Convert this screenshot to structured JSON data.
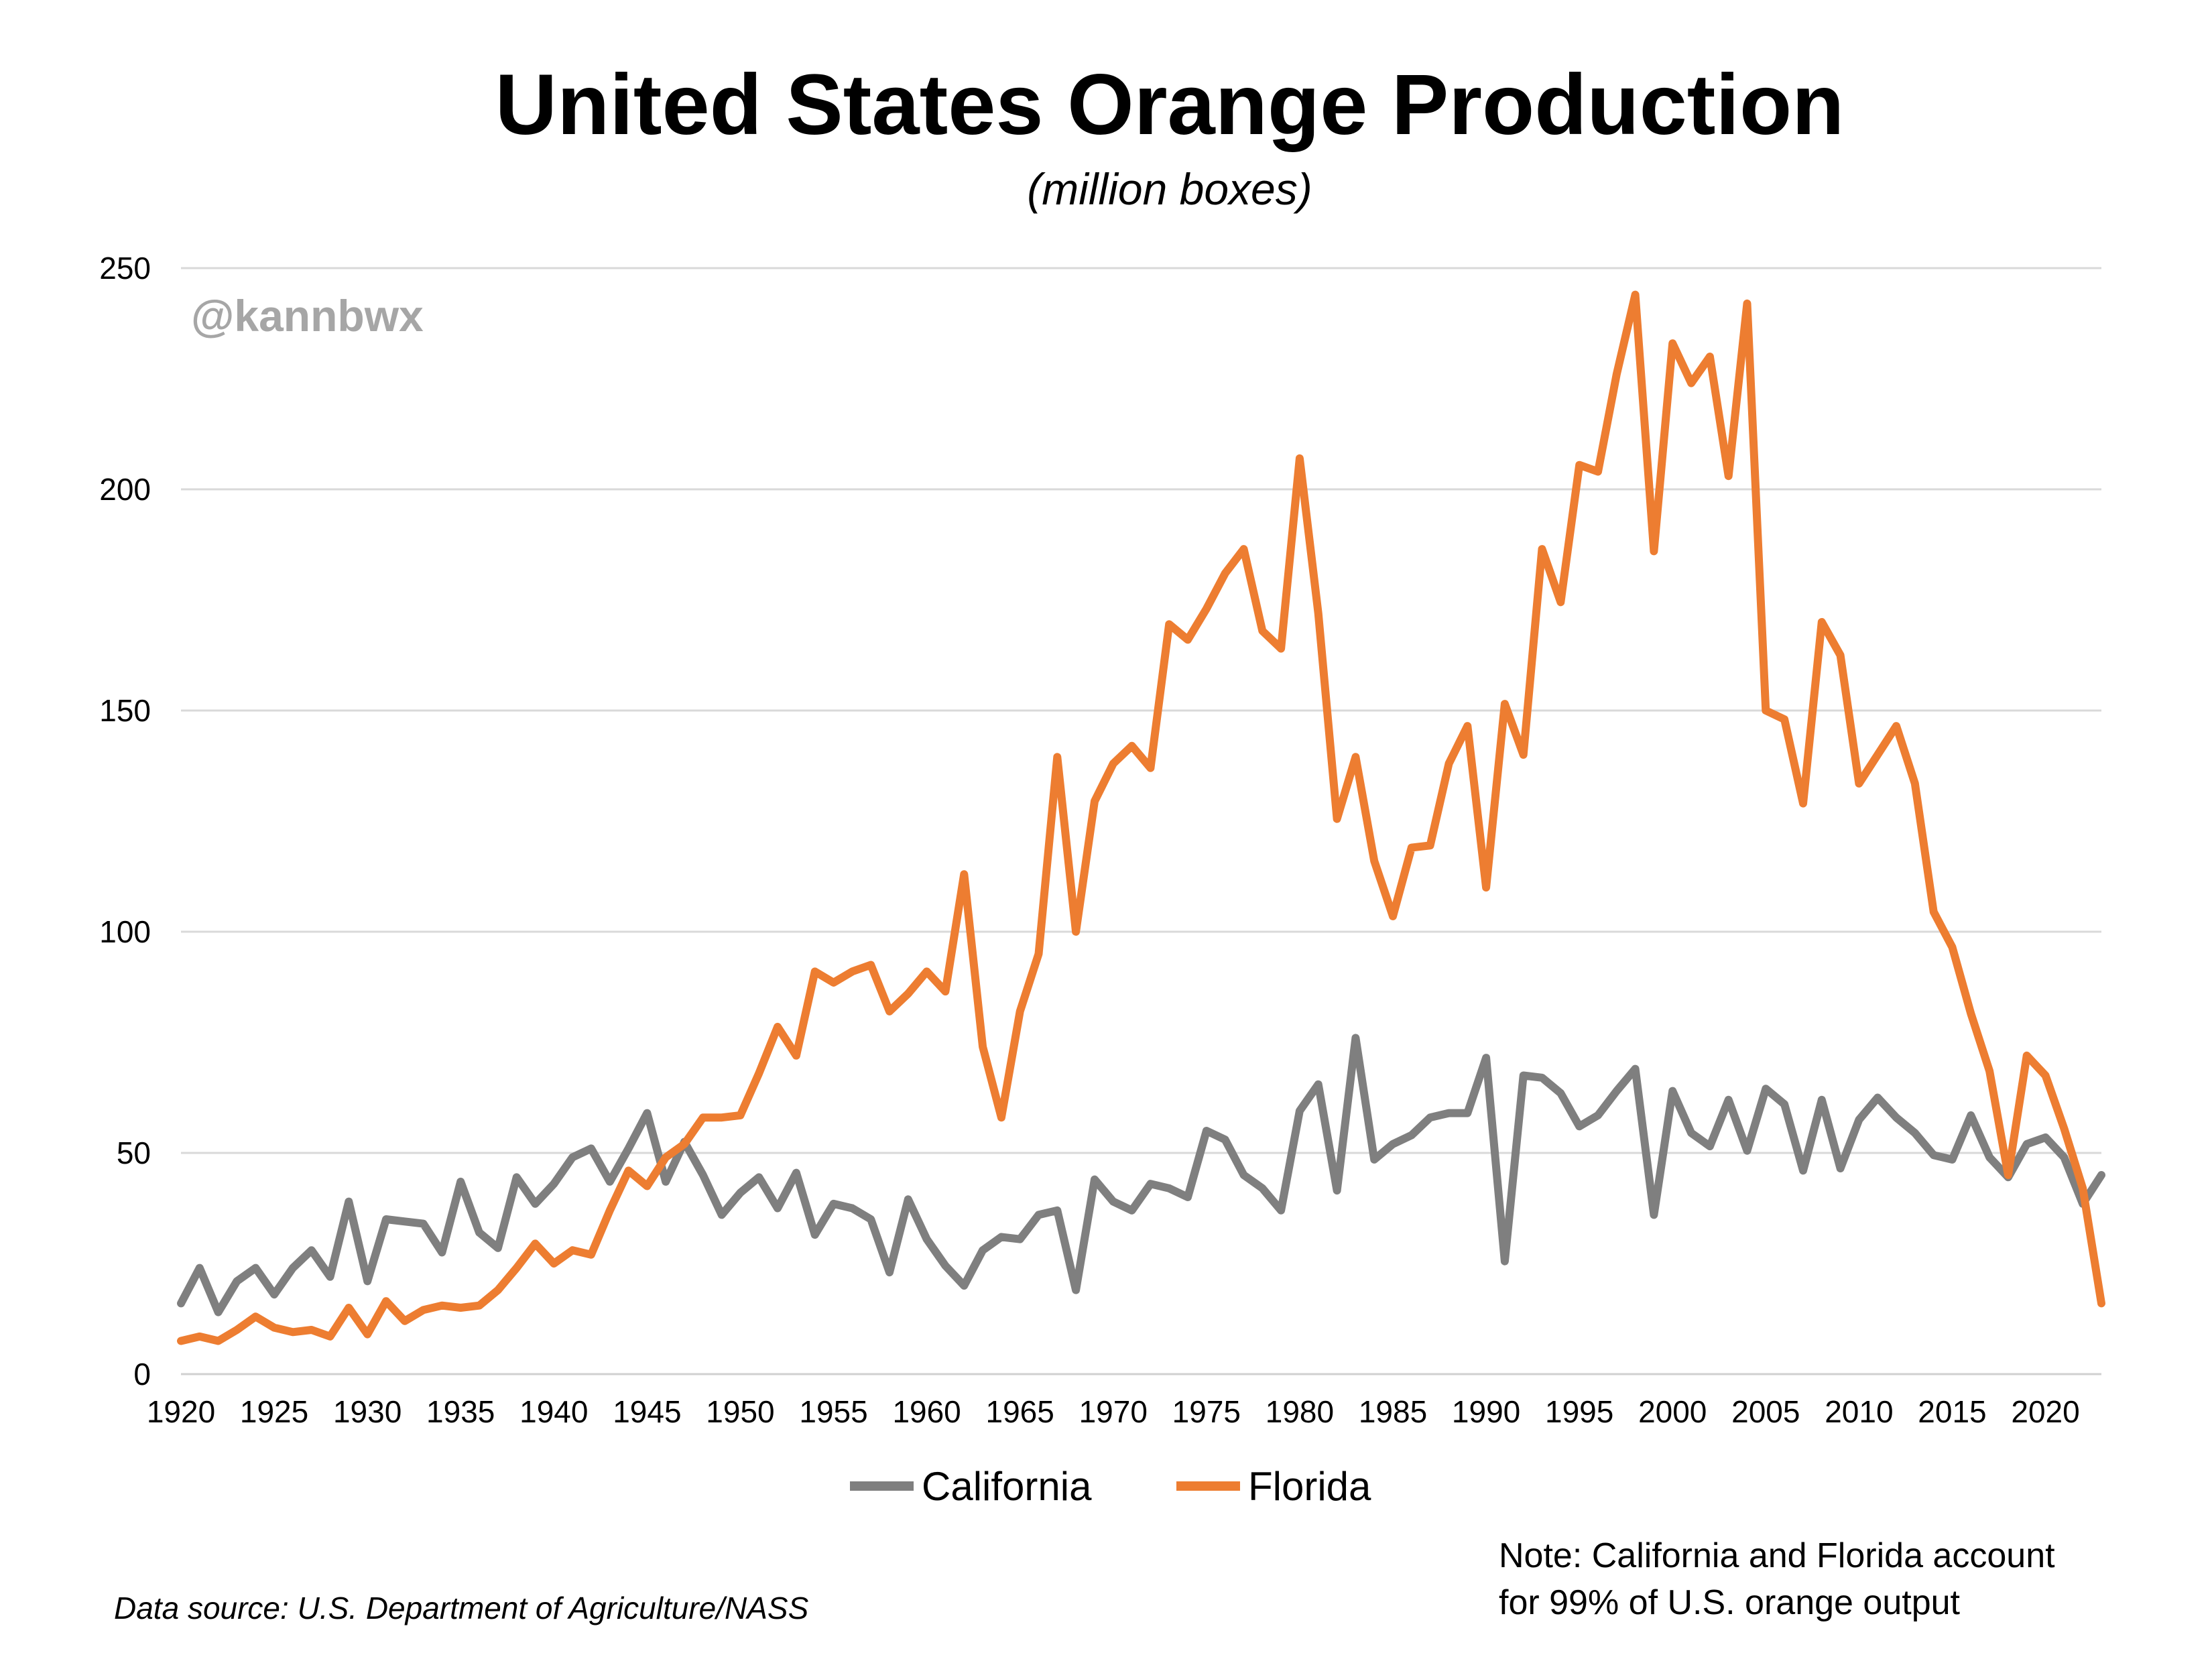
{
  "chart_data": {
    "type": "line",
    "title": "United States Orange Production",
    "subtitle": "(million boxes)",
    "watermark": "@kannbwx",
    "ylim": [
      0,
      250
    ],
    "y_ticks": [
      "0",
      "50",
      "100",
      "150",
      "200",
      "250"
    ],
    "y_tick_values": [
      0,
      50,
      100,
      150,
      200,
      250
    ],
    "xlim": [
      1920,
      2023
    ],
    "x_ticks": [
      "1920",
      "1925",
      "1930",
      "1935",
      "1940",
      "1945",
      "1950",
      "1955",
      "1960",
      "1965",
      "1970",
      "1975",
      "1980",
      "1985",
      "1990",
      "1995",
      "2000",
      "2005",
      "2010",
      "2015",
      "2020"
    ],
    "x_tick_values": [
      1920,
      1925,
      1930,
      1935,
      1940,
      1945,
      1950,
      1955,
      1960,
      1965,
      1970,
      1975,
      1980,
      1985,
      1990,
      1995,
      2000,
      2005,
      2010,
      2015,
      2020
    ],
    "grid": "horizontal",
    "legend_position": "bottom",
    "x": [
      1920,
      1921,
      1922,
      1923,
      1924,
      1925,
      1926,
      1927,
      1928,
      1929,
      1930,
      1931,
      1932,
      1933,
      1934,
      1935,
      1936,
      1937,
      1938,
      1939,
      1940,
      1941,
      1942,
      1943,
      1944,
      1945,
      1946,
      1947,
      1948,
      1949,
      1950,
      1951,
      1952,
      1953,
      1954,
      1955,
      1956,
      1957,
      1958,
      1959,
      1960,
      1961,
      1962,
      1963,
      1964,
      1965,
      1966,
      1967,
      1968,
      1969,
      1970,
      1971,
      1972,
      1973,
      1974,
      1975,
      1976,
      1977,
      1978,
      1979,
      1980,
      1981,
      1982,
      1983,
      1984,
      1985,
      1986,
      1987,
      1988,
      1989,
      1990,
      1991,
      1992,
      1993,
      1994,
      1995,
      1996,
      1997,
      1998,
      1999,
      2000,
      2001,
      2002,
      2003,
      2004,
      2005,
      2006,
      2007,
      2008,
      2009,
      2010,
      2011,
      2012,
      2013,
      2014,
      2015,
      2016,
      2017,
      2018,
      2019,
      2020,
      2021,
      2022,
      2023
    ],
    "series": [
      {
        "name": "California",
        "color": "#7f7f7f",
        "values": [
          16,
          24,
          14,
          21,
          24,
          18,
          24,
          28,
          22,
          39,
          21,
          35,
          34.5,
          34,
          27.5,
          43.5,
          32,
          28.5,
          44.5,
          38.5,
          43,
          49,
          51,
          43.5,
          51,
          59,
          43.5,
          52.5,
          45,
          36,
          41,
          44.5,
          37.5,
          45.5,
          31.5,
          38.5,
          37.5,
          35,
          23,
          39.5,
          30.5,
          24.5,
          20,
          28,
          31,
          30.5,
          36,
          37,
          19,
          44,
          39,
          37,
          43,
          42,
          40,
          55,
          53,
          45,
          42,
          37,
          59.5,
          65.5,
          41.5,
          76,
          48.5,
          52,
          54,
          58,
          59,
          59,
          71.5,
          25.5,
          67.5,
          67,
          63.5,
          56,
          58.5,
          64,
          69,
          36,
          64,
          54.5,
          51.5,
          62,
          50.5,
          64.5,
          61,
          46,
          62,
          46.5,
          57.5,
          62.5,
          58,
          54.5,
          49.5,
          48.5,
          58.5,
          49,
          44.5,
          52,
          53.5,
          49,
          38.5,
          45
        ]
      },
      {
        "name": "Florida",
        "color": "#ed7d31",
        "values": [
          7.5,
          8.5,
          7.5,
          10,
          13,
          10.5,
          9.5,
          10,
          8.5,
          15,
          9,
          16.5,
          12,
          14.5,
          15.5,
          15,
          15.5,
          19,
          24,
          29.5,
          25,
          28,
          27,
          37,
          46,
          42.5,
          49,
          52,
          58,
          58,
          58.5,
          68,
          78.5,
          72,
          91,
          88.5,
          91,
          92.5,
          82,
          86,
          91,
          86.5,
          113,
          74,
          58,
          82,
          95,
          139.5,
          100,
          129.5,
          138,
          142,
          137,
          169.5,
          166,
          173,
          181,
          186.5,
          168,
          164,
          207,
          172,
          125.5,
          139.5,
          116,
          103.5,
          119,
          119.5,
          138,
          146.5,
          110,
          151.5,
          140,
          186.5,
          174.5,
          205.5,
          204,
          226,
          244,
          186,
          233,
          224,
          230,
          203,
          242,
          150,
          148,
          129,
          170,
          162.5,
          133.5,
          140,
          146.5,
          133.5,
          104.5,
          96.5,
          81.5,
          68.5,
          45,
          72,
          67.5,
          55.5,
          42,
          16
        ]
      }
    ]
  },
  "footer": {
    "source": "Data source: U.S. Department of Agriculture/NASS",
    "note_line1": "Note: California and Florida account",
    "note_line2": "for 99% of U.S. orange output"
  }
}
